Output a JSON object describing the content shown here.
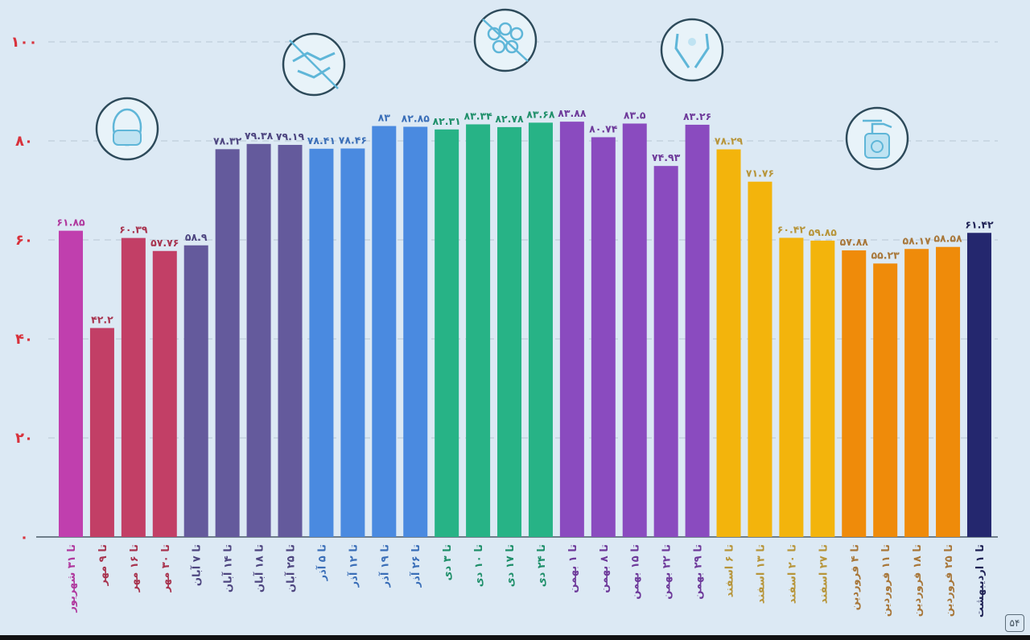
{
  "chart_data": {
    "type": "bar",
    "ylim": [
      0,
      100
    ],
    "y_ticks": [
      0,
      20,
      40,
      60,
      80,
      100
    ],
    "y_tick_labels": [
      "۰",
      "۲۰",
      "۴۰",
      "۶۰",
      "۸۰",
      "۱۰۰"
    ],
    "grid": "dashed horizontal",
    "categories": [
      "تا ۳۱ شهریور",
      "تا ۹ مهر",
      "تا ۱۶ مهر",
      "تا ۳۰ مهر",
      "تا ۷ آبان",
      "تا ۱۴ آبان",
      "تا ۱۸ آبان",
      "تا ۲۵ آبان",
      "تا ۵ آذر",
      "تا ۱۲ آذر",
      "تا ۱۹ آذر",
      "تا ۲۶ آذر",
      "تا ۳ دی",
      "تا ۱۰ دی",
      "تا ۱۷ دی",
      "تا ۲۴ دی",
      "تا ۱ بهمن",
      "تا ۸ بهمن",
      "تا ۱۵ بهمن",
      "تا ۲۲ بهمن",
      "تا ۲۹ بهمن",
      "تا ۶ اسفند",
      "تا ۱۳ اسفند",
      "تا ۲۰ اسفند",
      "تا ۲۷ اسفند",
      "تا ۴ فروردین",
      "تا ۱۱ فروردین",
      "تا ۱۸ فروردین",
      "تا ۲۵ فروردین",
      "تا ۱ اردیبهشت"
    ],
    "values": [
      61.85,
      42.2,
      60.39,
      57.76,
      58.9,
      78.32,
      79.38,
      79.19,
      78.41,
      78.46,
      83,
      82.85,
      82.31,
      83.34,
      82.78,
      83.68,
      83.88,
      80.74,
      83.5,
      74.93,
      83.26,
      78.29,
      71.76,
      60.42,
      59.85,
      57.88,
      55.23,
      58.17,
      58.58,
      61.42
    ],
    "value_labels": [
      "۶۱.۸۵",
      "۴۲.۲",
      "۶۰.۳۹",
      "۵۷.۷۶",
      "۵۸.۹",
      "۷۸.۳۲",
      "۷۹.۳۸",
      "۷۹.۱۹",
      "۷۸.۴۱",
      "۷۸.۴۶",
      "۸۳",
      "۸۲.۸۵",
      "۸۲.۳۱",
      "۸۳.۳۴",
      "۸۲.۷۸",
      "۸۳.۶۸",
      "۸۳.۸۸",
      "۸۰.۷۴",
      "۸۳.۵",
      "۷۴.۹۳",
      "۸۳.۲۶",
      "۷۸.۲۹",
      "۷۱.۷۶",
      "۶۰.۴۲",
      "۵۹.۸۵",
      "۵۷.۸۸",
      "۵۵.۲۳",
      "۵۸.۱۷",
      "۵۸.۵۸",
      "۶۱.۴۲"
    ],
    "colors": [
      "#c03fae",
      "#c23f66",
      "#c23f66",
      "#c23f66",
      "#645a9c",
      "#645a9c",
      "#645a9c",
      "#645a9c",
      "#4a8ae0",
      "#4a8ae0",
      "#4a8ae0",
      "#4a8ae0",
      "#27b386",
      "#27b386",
      "#27b386",
      "#27b386",
      "#8a4bbf",
      "#8a4bbf",
      "#8a4bbf",
      "#8a4bbf",
      "#8a4bbf",
      "#f3b40c",
      "#f3b40c",
      "#f3b40c",
      "#f3b40c",
      "#ef8b0a",
      "#ef8b0a",
      "#ef8b0a",
      "#ef8b0a",
      "#24276e"
    ],
    "label_colors": [
      "#b0399e",
      "#a8344f",
      "#a8344f",
      "#a8344f",
      "#4e4680",
      "#4e4680",
      "#4e4680",
      "#4e4680",
      "#3b6fb8",
      "#3b6fb8",
      "#3b6fb8",
      "#3b6fb8",
      "#1f8f6a",
      "#1f8f6a",
      "#1f8f6a",
      "#1f8f6a",
      "#6e3a9a",
      "#6e3a9a",
      "#6e3a9a",
      "#6e3a9a",
      "#6e3a9a",
      "#b7953a",
      "#b7953a",
      "#b7953a",
      "#b7953a",
      "#a8773a",
      "#a8773a",
      "#a8773a",
      "#a8773a",
      "#1f2255"
    ],
    "y_tick_color": "#d8323c",
    "icons": [
      "face-mask-icon",
      "no-handshake-icon",
      "no-crowd-icon",
      "hand-washing-icon",
      "sanitizer-spray-icon"
    ]
  },
  "page_number": "۵۴"
}
